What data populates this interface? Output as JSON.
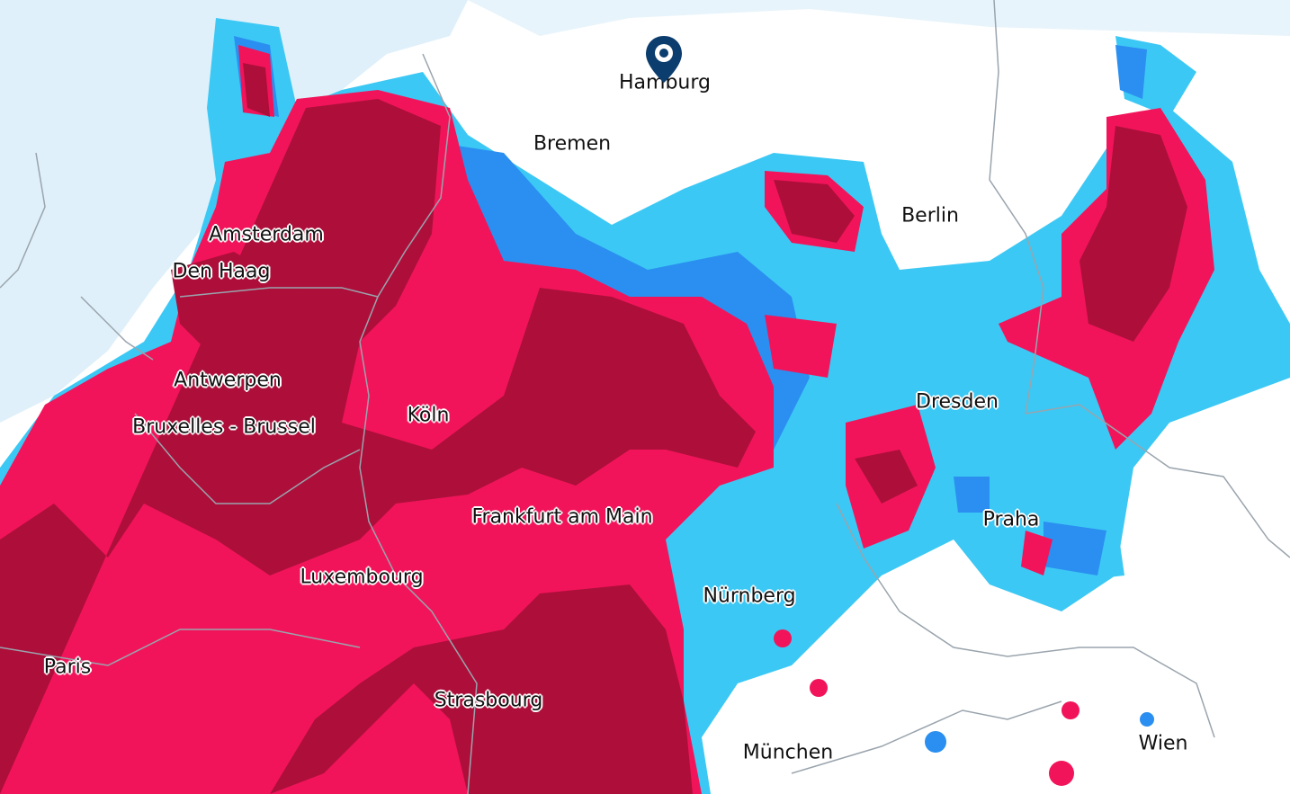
{
  "map": {
    "type": "precipitation radar",
    "colors": {
      "sea": "#dff0fa",
      "land": "#ffffff",
      "border": "#9aa4ad",
      "light_rain": "#3cc8f4",
      "moderate_rain": "#2a8ff0",
      "heavy_rain": "#f2145a",
      "very_heavy_rain": "#ad0f3a",
      "pin": "#0b3d6e"
    },
    "marker": {
      "icon": "location-pin-icon",
      "city": "Hamburg"
    },
    "cities": [
      {
        "id": "hamburg",
        "name": "Hamburg"
      },
      {
        "id": "bremen",
        "name": "Bremen"
      },
      {
        "id": "berlin",
        "name": "Berlin"
      },
      {
        "id": "amsterdam",
        "name": "Amsterdam"
      },
      {
        "id": "den-haag",
        "name": "Den Haag"
      },
      {
        "id": "antwerpen",
        "name": "Antwerpen"
      },
      {
        "id": "bruxelles",
        "name": "Bruxelles - Brussel"
      },
      {
        "id": "koln",
        "name": "Köln"
      },
      {
        "id": "dresden",
        "name": "Dresden"
      },
      {
        "id": "frankfurt",
        "name": "Frankfurt am Main"
      },
      {
        "id": "praha",
        "name": "Praha"
      },
      {
        "id": "luxembourg",
        "name": "Luxembourg"
      },
      {
        "id": "nurnberg",
        "name": "Nürnberg"
      },
      {
        "id": "paris",
        "name": "Paris"
      },
      {
        "id": "strasbourg",
        "name": "Strasbourg"
      },
      {
        "id": "munchen",
        "name": "München"
      },
      {
        "id": "wien",
        "name": "Wien"
      }
    ]
  }
}
